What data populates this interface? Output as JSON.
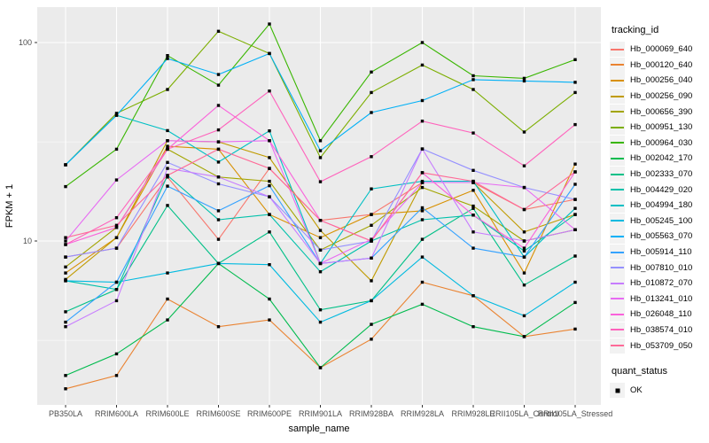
{
  "chart_data": {
    "type": "line",
    "title": "",
    "xlabel": "sample_name",
    "ylabel": "FPKM + 1",
    "y_scale": "log10",
    "y_tick_values": [
      100,
      10
    ],
    "y_tick_labels": [
      "100",
      "10"
    ],
    "y_minor_values": [
      31.6,
      3.16
    ],
    "ylim": [
      1.49,
      151
    ],
    "grid": true,
    "panel_bg": "#EBEBEB",
    "gridline_color": "#FFFFFF",
    "tick_color": "#333333",
    "tick_label_color": "#4D4D4D",
    "point_color": "#000000",
    "legend_key_bg": "#F2F2F2",
    "legend_title": "tracking_id",
    "legend2_title": "quant_status",
    "legend2_items": [
      "OK"
    ],
    "legend_position": "right",
    "categories": [
      "PB350LA",
      "RRIM600LA",
      "RRIM600LE",
      "RRIM600SE",
      "RRIM600PE",
      "RRIM901LA",
      "RRIM928BA",
      "RRIM928LA",
      "RRIM928LE",
      "RRII105LA_Control",
      "RRII105LA_Stressed"
    ],
    "series": [
      {
        "name": "Hb_000069_640",
        "color": "#F8766D",
        "values": [
          8.3,
          9.2,
          21.0,
          10.2,
          23.2,
          12.7,
          13.6,
          19.7,
          19.7,
          14.4,
          16.2
        ]
      },
      {
        "name": "Hb_000120_640",
        "color": "#EA8331",
        "values": [
          1.8,
          2.1,
          5.1,
          3.7,
          4.0,
          2.3,
          3.2,
          6.2,
          5.3,
          3.3,
          3.6
        ]
      },
      {
        "name": "Hb_000256_040",
        "color": "#D89000",
        "values": [
          6.9,
          10.4,
          30.0,
          29.0,
          13.6,
          10.4,
          13.6,
          14.2,
          18.0,
          6.9,
          24.4
        ]
      },
      {
        "name": "Hb_000256_090",
        "color": "#C09B00",
        "values": [
          6.4,
          10.4,
          32.0,
          31.6,
          26.3,
          11.3,
          6.3,
          19.7,
          19.7,
          11.1,
          13.6
        ]
      },
      {
        "name": "Hb_000656_390",
        "color": "#A3A500",
        "values": [
          7.4,
          11.7,
          29.0,
          21.0,
          20.0,
          9.0,
          12.0,
          18.6,
          15.0,
          10.0,
          11.4
        ]
      },
      {
        "name": "Hb_000951_130",
        "color": "#7CAE00",
        "values": [
          24.2,
          44.0,
          58.0,
          114.0,
          88.0,
          26.3,
          56.0,
          77.0,
          58.0,
          35.4,
          56.0
        ]
      },
      {
        "name": "Hb_000964_030",
        "color": "#39B600",
        "values": [
          18.8,
          29.0,
          86.0,
          61.0,
          124.0,
          32.0,
          71.0,
          100.0,
          68.0,
          66.0,
          82.0
        ]
      },
      {
        "name": "Hb_002042_170",
        "color": "#00BB4E",
        "values": [
          2.1,
          2.7,
          4.0,
          7.7,
          5.1,
          2.3,
          3.8,
          4.8,
          3.7,
          3.3,
          4.9
        ]
      },
      {
        "name": "Hb_002333_070",
        "color": "#00C087",
        "values": [
          4.4,
          5.7,
          15.1,
          7.7,
          11.1,
          4.5,
          5.0,
          10.2,
          14.6,
          6.0,
          8.4
        ]
      },
      {
        "name": "Hb_004429_020",
        "color": "#00C1AB",
        "values": [
          6.3,
          5.7,
          21.4,
          12.8,
          13.6,
          7.0,
          10.0,
          12.8,
          13.5,
          8.9,
          13.6
        ]
      },
      {
        "name": "Hb_004994_180",
        "color": "#00BFC4",
        "values": [
          24.2,
          43.0,
          36.0,
          25.0,
          35.9,
          7.7,
          18.3,
          20.0,
          20.0,
          8.3,
          14.6
        ]
      },
      {
        "name": "Hb_005245_100",
        "color": "#00BAE0",
        "values": [
          6.3,
          6.2,
          6.9,
          7.7,
          7.6,
          3.9,
          5.0,
          8.3,
          5.3,
          4.2,
          6.2
        ]
      },
      {
        "name": "Hb_005563_070",
        "color": "#00B0F6",
        "values": [
          24.2,
          43.0,
          83.0,
          69.0,
          88.0,
          28.5,
          44.4,
          51.0,
          65.0,
          64.0,
          63.0
        ]
      },
      {
        "name": "Hb_005914_110",
        "color": "#35A2FF",
        "values": [
          3.9,
          6.2,
          18.9,
          14.2,
          19.0,
          7.7,
          8.2,
          14.7,
          9.2,
          8.3,
          19.3
        ]
      },
      {
        "name": "Hb_007810_010",
        "color": "#9590FF",
        "values": [
          8.3,
          9.2,
          24.9,
          19.4,
          16.7,
          9.0,
          10.0,
          29.1,
          22.7,
          18.6,
          16.2
        ]
      },
      {
        "name": "Hb_010872_070",
        "color": "#C77CFF",
        "values": [
          3.7,
          5.0,
          23.2,
          21.0,
          16.7,
          7.7,
          8.2,
          29.1,
          11.1,
          10.0,
          11.4
        ]
      },
      {
        "name": "Hb_013241_010",
        "color": "#E76BF3",
        "values": [
          10.0,
          20.3,
          32.0,
          31.6,
          32.0,
          7.7,
          10.2,
          19.7,
          19.7,
          18.6,
          11.4
        ]
      },
      {
        "name": "Hb_026048_110",
        "color": "#FA62DB",
        "values": [
          9.6,
          11.7,
          29.0,
          48.2,
          32.0,
          12.7,
          10.0,
          22.1,
          13.5,
          9.2,
          22.3
        ]
      },
      {
        "name": "Hb_038574_010",
        "color": "#FF62BC",
        "values": [
          9.6,
          13.1,
          29.0,
          36.3,
          57.0,
          19.9,
          26.6,
          40.2,
          35.0,
          23.9,
          38.6
        ]
      },
      {
        "name": "Hb_053709_050",
        "color": "#FF6A98",
        "values": [
          10.4,
          12.0,
          21.4,
          29.0,
          23.2,
          12.7,
          10.0,
          22.1,
          20.0,
          14.4,
          22.3
        ]
      }
    ]
  }
}
